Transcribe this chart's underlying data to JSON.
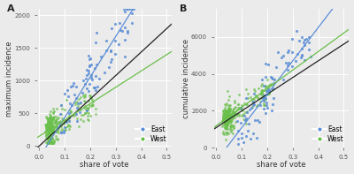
{
  "figsize": [
    4.0,
    1.97
  ],
  "dpi": 100,
  "background_color": "#ebebeb",
  "panel_bg": "#ebebeb",
  "east_color": "#5b8ed6",
  "west_color": "#6abf4b",
  "black_line_color": "#222222",
  "xlabel": "share of vote",
  "ylabel_A": "maximum incidence",
  "ylabel_B": "cumulative incidence",
  "label_A": "A",
  "label_B": "B",
  "legend_east": "East",
  "legend_west": "West",
  "seed": 7,
  "xlim": [
    -0.01,
    0.52
  ],
  "ylim_A": [
    -30,
    2100
  ],
  "ylim_B": [
    0,
    7500
  ],
  "yticks_A": [
    0,
    500,
    1000,
    1500,
    2000
  ],
  "yticks_B": [
    0,
    2000,
    4000,
    6000
  ],
  "xticks": [
    0.0,
    0.1,
    0.2,
    0.3,
    0.4,
    0.5
  ],
  "n_east": 90,
  "n_west": 310,
  "line_A_blue_slope": 6200,
  "line_A_blue_intercept": -180,
  "line_A_green_slope": 2500,
  "line_A_green_intercept": 150,
  "line_A_black_slope": 3600,
  "line_A_black_intercept": 0,
  "line_B_blue_slope": 18000,
  "line_B_blue_intercept": -700,
  "line_B_green_slope": 10000,
  "line_B_green_intercept": 1200,
  "line_B_black_slope": 9000,
  "line_B_black_intercept": 1100
}
